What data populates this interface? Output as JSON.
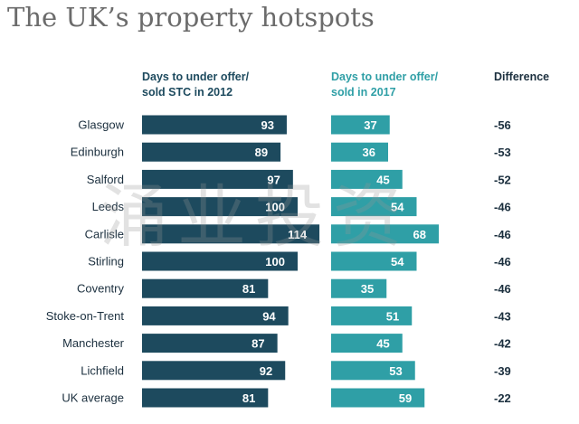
{
  "title": "The UK’s property hotspots",
  "headers": {
    "col2012": [
      "Days to under offer/",
      "sold STC in 2012"
    ],
    "col2017": [
      "Days to under offer/",
      "sold in 2017"
    ],
    "diff": "Difference"
  },
  "watermark": "涌业投资",
  "colors": {
    "bar2012": "#1d4a5e",
    "bar2017": "#2f9fa6",
    "label": "#1b2f3e",
    "title": "#6b6b6b"
  },
  "chart_data": {
    "type": "bar",
    "orientation": "horizontal",
    "title": "The UK’s property hotspots",
    "categories": [
      "Glasgow",
      "Edinburgh",
      "Salford",
      "Leeds",
      "Carlisle",
      "Stirling",
      "Coventry",
      "Stoke-on-Trent",
      "Manchester",
      "Lichfield",
      "UK average"
    ],
    "series": [
      {
        "name": "Days to under offer/ sold STC in 2012",
        "values": [
          93,
          89,
          97,
          100,
          114,
          100,
          81,
          94,
          87,
          92,
          81
        ]
      },
      {
        "name": "Days to under offer/ sold in 2017",
        "values": [
          37,
          36,
          45,
          54,
          68,
          54,
          35,
          51,
          45,
          53,
          59
        ]
      }
    ],
    "difference": [
      "-56",
      "-53",
      "-52",
      "-46",
      "-46",
      "-46",
      "-46",
      "-43",
      "-42",
      "-39",
      "-22"
    ]
  }
}
